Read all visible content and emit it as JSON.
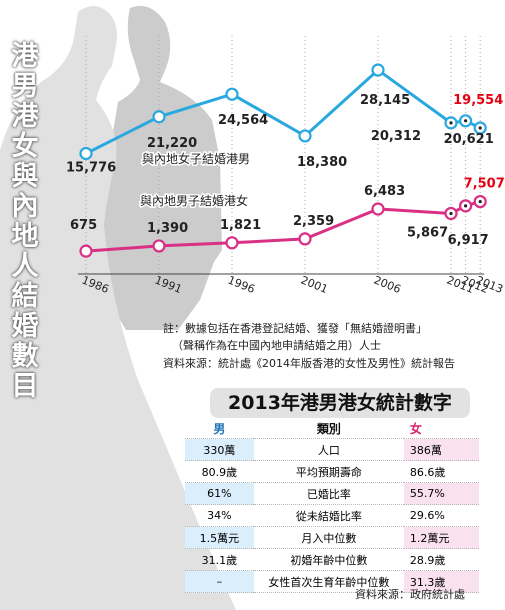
{
  "title": "港男港女與內地人結婚數目",
  "colors": {
    "blue": "#29a8e0",
    "pink": "#d92f84",
    "red": "#e50012"
  },
  "chart_data": {
    "type": "line",
    "title": "港男港女與內地人結婚數目",
    "x": [
      1986,
      1991,
      1996,
      2001,
      2006,
      2011,
      2012,
      2013
    ],
    "x_tick_labels": [
      "1986",
      "1991",
      "1996",
      "2001",
      "2006",
      "2011",
      "2012",
      "2013"
    ],
    "series": [
      {
        "name": "與內地女子結婚港男",
        "color": "#29a8e0",
        "values": [
          15776,
          21220,
          24564,
          18380,
          28145,
          20312,
          20621,
          19554
        ],
        "labels": [
          "15,776",
          "21,220",
          "24,564",
          "18,380",
          "28,145",
          "20,312",
          "20,621",
          "19,554"
        ]
      },
      {
        "name": "與內地男子結婚港女",
        "color": "#d92f84",
        "values": [
          675,
          1390,
          1821,
          2359,
          6483,
          5867,
          6917,
          7507
        ],
        "labels": [
          "675",
          "1,390",
          "1,821",
          "2,359",
          "6,483",
          "5,867",
          "6,917",
          "7,507"
        ]
      }
    ],
    "highlight_color": "#e50012"
  },
  "notes": {
    "line1": "註：數據包括在香港登記結婚、獲發「無結婚證明書」",
    "line2": "（聲稱作為在中國內地申請結婚之用）人士",
    "source": "資料來源：統計處《2014年版香港的女性及男性》統計報告"
  },
  "stats": {
    "title": "2013年港男港女統計數字",
    "header": {
      "male": "男",
      "category": "類別",
      "female": "女"
    },
    "rows": [
      {
        "male": "330萬",
        "category": "人口",
        "female": "386萬"
      },
      {
        "male": "80.9歲",
        "category": "平均預期壽命",
        "female": "86.6歲"
      },
      {
        "male": "61%",
        "category": "已婚比率",
        "female": "55.7%"
      },
      {
        "male": "34%",
        "category": "從未結婚比率",
        "female": "29.6%"
      },
      {
        "male": "1.5萬元",
        "category": "月入中位數",
        "female": "1.2萬元"
      },
      {
        "male": "31.1歲",
        "category": "初婚年齡中位數",
        "female": "28.9歲"
      },
      {
        "male": "–",
        "category": "女性首次生育年齡中位數",
        "female": "31.3歲"
      }
    ],
    "source": "資料來源：政府統計處"
  }
}
